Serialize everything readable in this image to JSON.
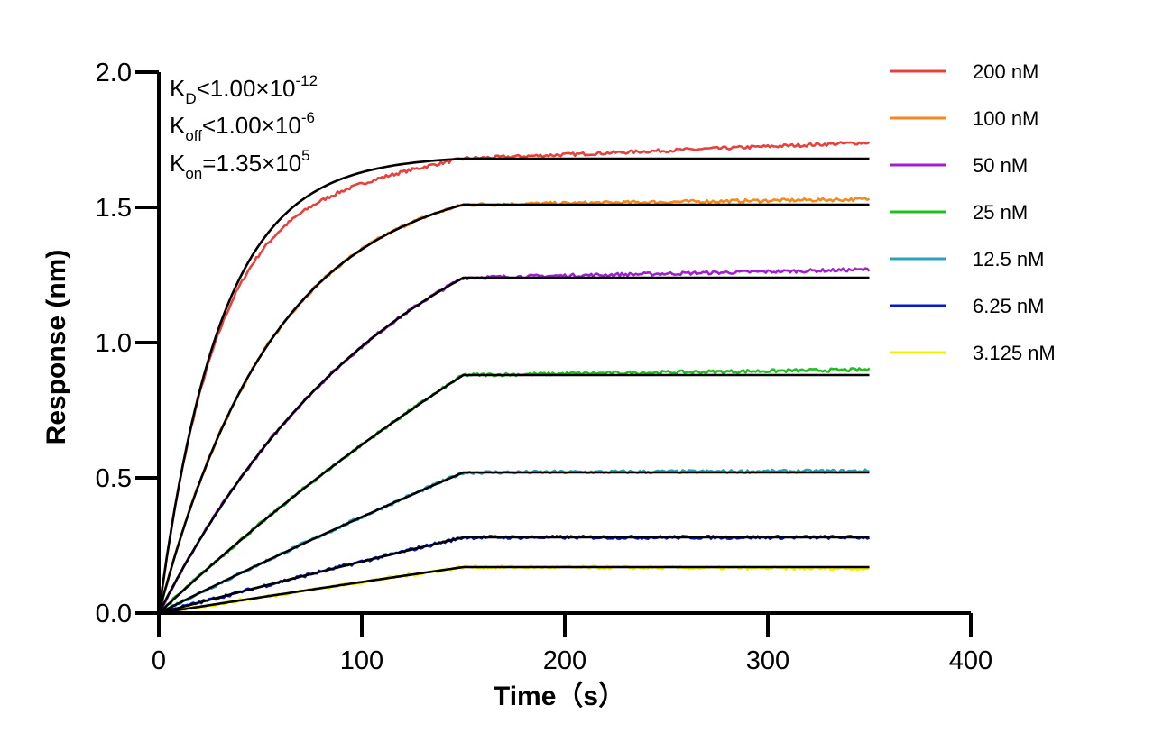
{
  "chart_data": {
    "type": "line",
    "xlabel": "Time（s）",
    "ylabel": "Response (nm)",
    "xlim": [
      0,
      400
    ],
    "ylim": [
      0,
      2.0
    ],
    "x_ticks": [
      "0",
      "100",
      "200",
      "300",
      "400"
    ],
    "y_ticks": [
      "0.0",
      "0.5",
      "1.0",
      "1.5",
      "2.0"
    ],
    "grid": false,
    "legend_position": "top-right",
    "annotations": {
      "kd": {
        "base": "K",
        "sub": "D",
        "text": "<1.00×10",
        "sup": "-12"
      },
      "koff": {
        "base": "K",
        "sub": "off",
        "text": "<1.00×10",
        "sup": "-6"
      },
      "kon": {
        "base": "K",
        "sub": "on",
        "text": "=1.35×10",
        "sup": "5"
      }
    },
    "association_end": 150,
    "dissociation_end": 350,
    "series": [
      {
        "name": "200 nM",
        "color": "#e8413c",
        "plateau": 1.68,
        "final": 1.74,
        "k_obs": 0.033
      },
      {
        "name": "100 nM",
        "color": "#f28a1e",
        "plateau": 1.51,
        "final": 1.53,
        "k_obs": 0.0175
      },
      {
        "name": "50 nM",
        "color": "#a020d0",
        "plateau": 1.24,
        "final": 1.27,
        "k_obs": 0.0085
      },
      {
        "name": "25 nM",
        "color": "#1fbf1f",
        "plateau": 0.88,
        "final": 0.9,
        "k_obs": 0.0025
      },
      {
        "name": "12.5 nM",
        "color": "#2aa3b8",
        "plateau": 0.52,
        "final": 0.525,
        "k_obs": 0.001
      },
      {
        "name": "6.25 nM",
        "color": "#0a18c8",
        "plateau": 0.28,
        "final": 0.28,
        "k_obs": 0.0008
      },
      {
        "name": "3.125 nM",
        "color": "#f5f000",
        "plateau": 0.17,
        "final": 0.165,
        "k_obs": 0.0005
      }
    ],
    "fit_color": "#000000"
  }
}
